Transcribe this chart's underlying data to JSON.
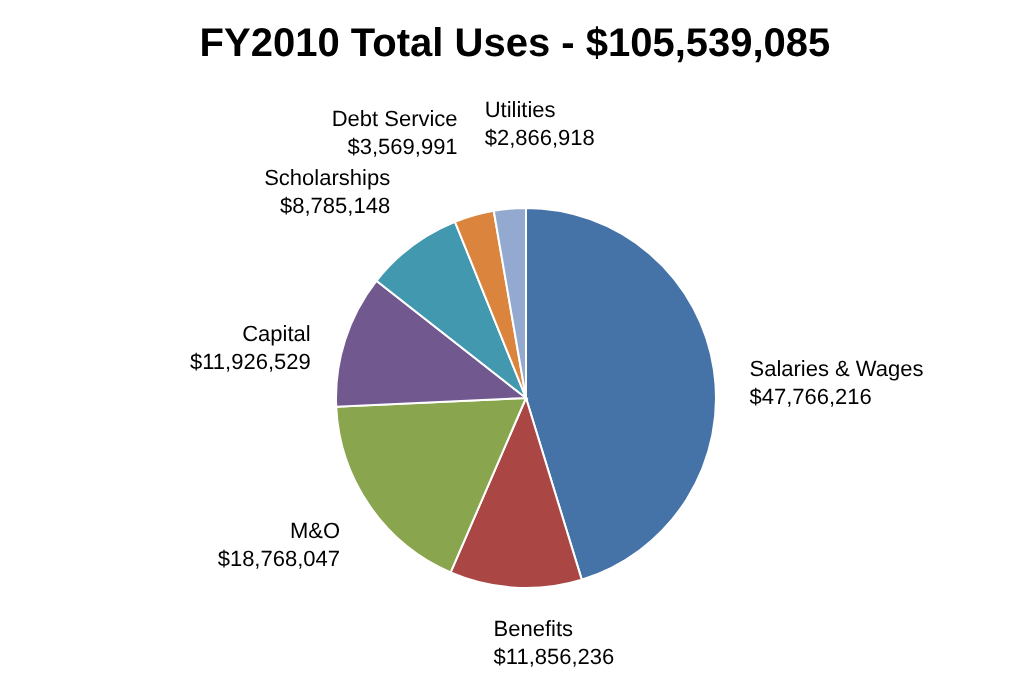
{
  "chart_data": {
    "type": "pie",
    "title": "FY2010 Total Uses - $105,539,085",
    "categories": [
      "Salaries & Wages",
      "Benefits",
      "M&O",
      "Capital",
      "Scholarships",
      "Debt Service",
      "Utilities"
    ],
    "values": [
      47766216,
      11856236,
      18768047,
      11926529,
      8785148,
      3569991,
      2866918
    ],
    "value_labels": [
      "$47,766,216",
      "$11,856,236",
      "$18,768,047",
      "$11,926,529",
      "$8,785,148",
      "$3,569,991",
      "$2,866,918"
    ],
    "colors": [
      "#4572a7",
      "#aa4643",
      "#89a54e",
      "#71588f",
      "#4198af",
      "#db843d",
      "#93a9cf"
    ],
    "legend": false
  }
}
